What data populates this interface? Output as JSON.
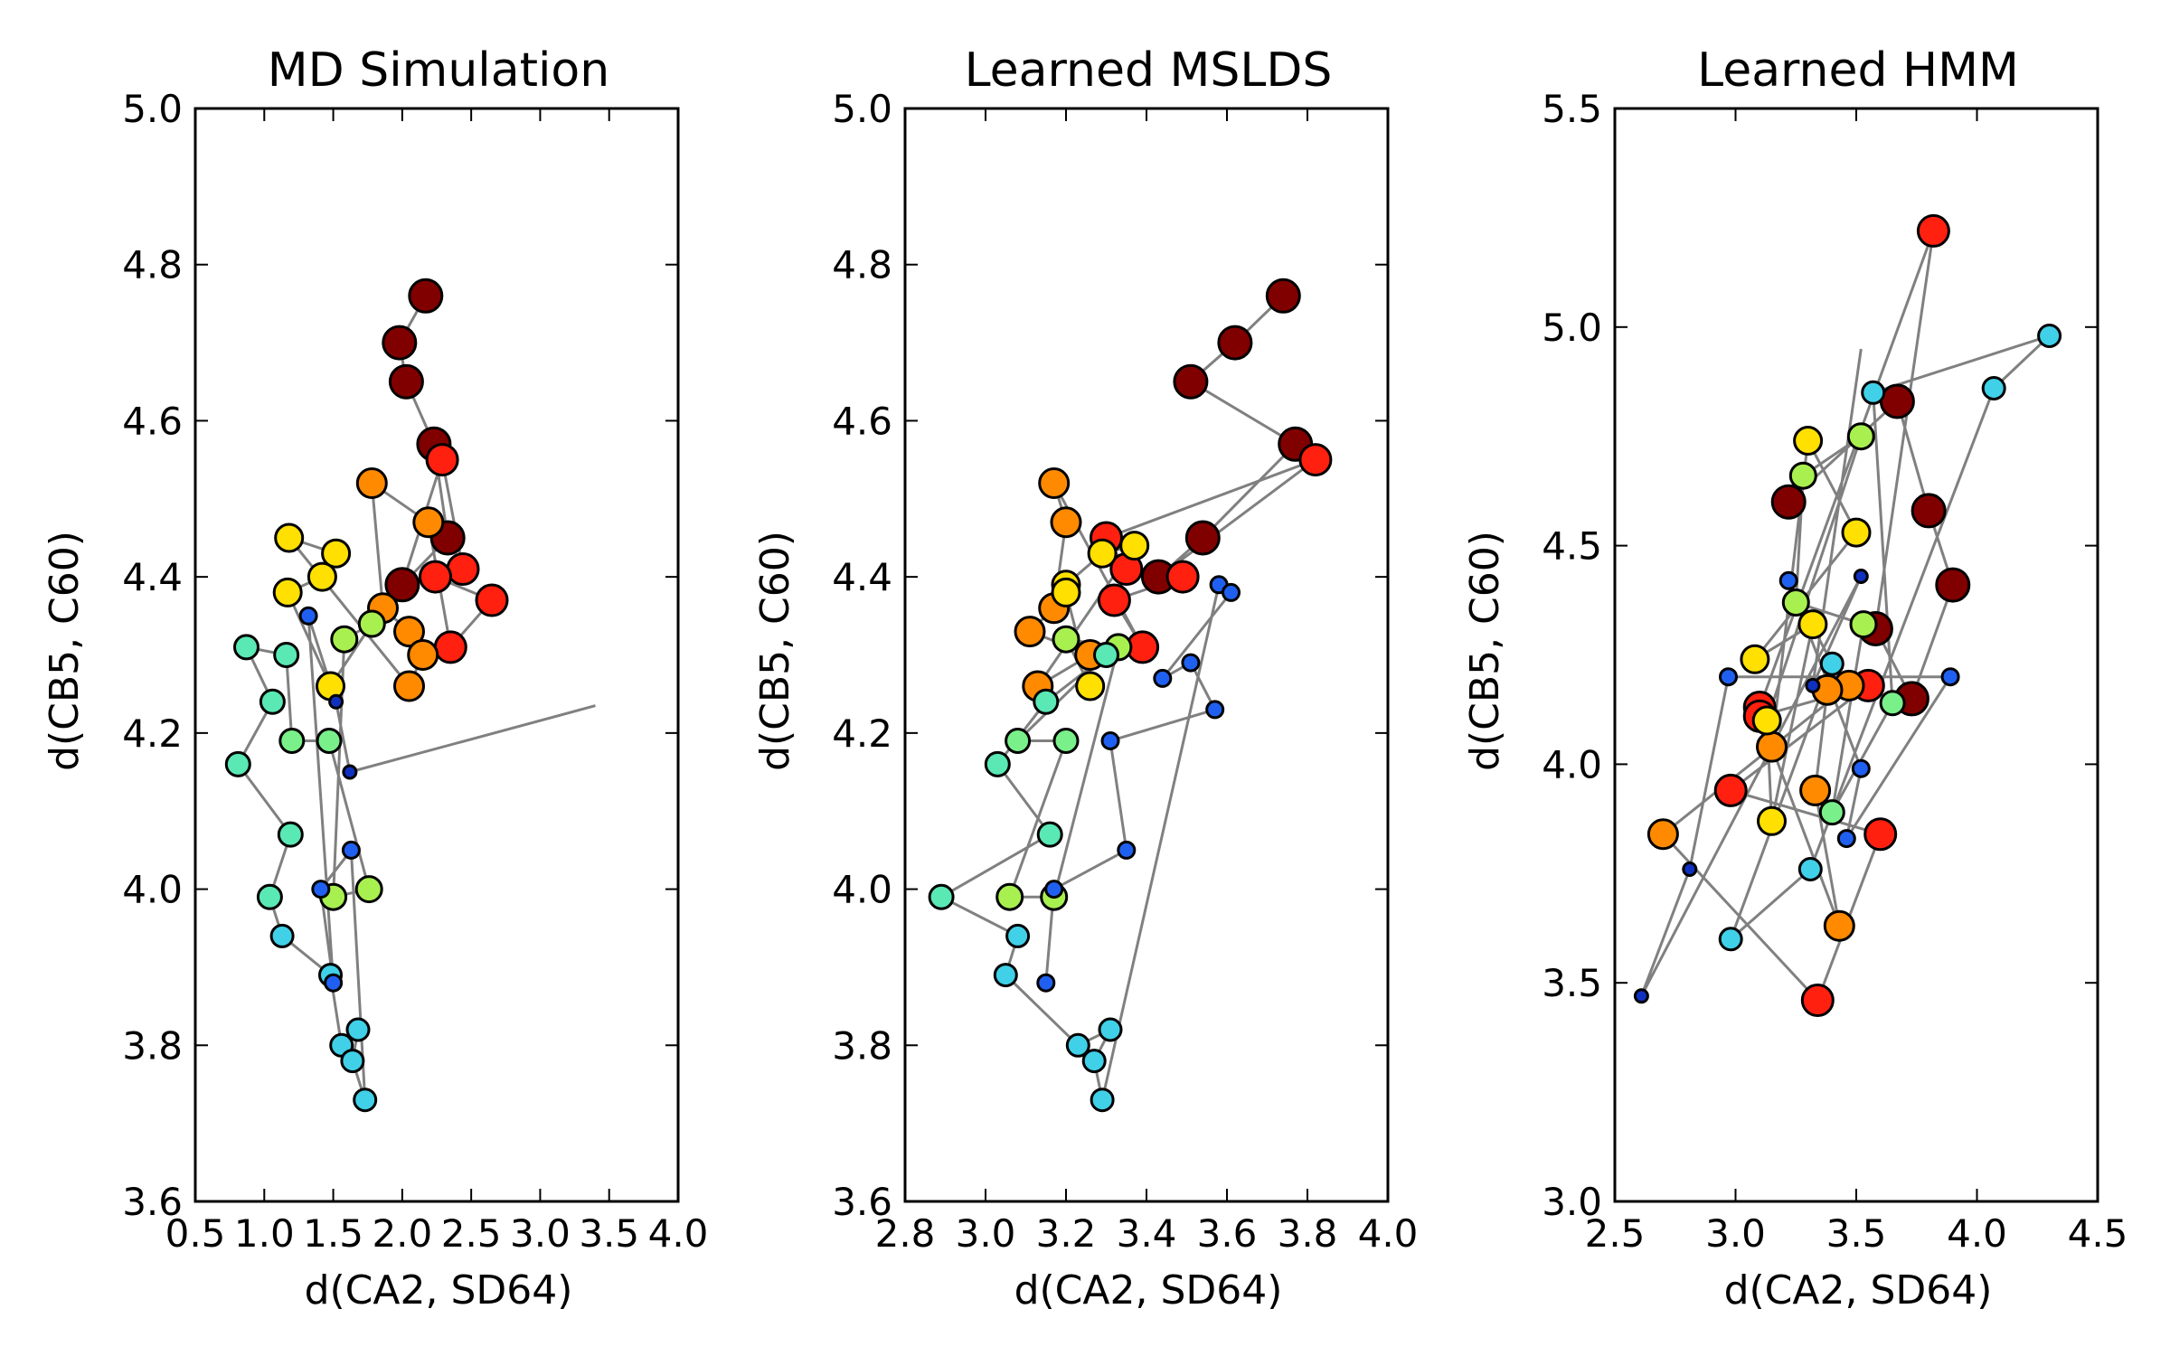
{
  "chart_data": [
    {
      "type": "scatter",
      "title": "MD Simulation",
      "xlabel": "d(CA2, SD64)",
      "ylabel": "d(CB5, C60)",
      "xlim": [
        0.5,
        4.0
      ],
      "ylim": [
        3.6,
        5.0
      ],
      "xticks": [
        "0.5",
        "1.0",
        "1.5",
        "2.0",
        "2.5",
        "3.0",
        "3.5",
        "4.0"
      ],
      "yticks": [
        "3.6",
        "3.8",
        "4.0",
        "4.2",
        "4.4",
        "4.6",
        "4.8",
        "5.0"
      ],
      "grid": false,
      "points": [
        {
          "x": 2.17,
          "y": 4.76,
          "c": "#800000"
        },
        {
          "x": 1.98,
          "y": 4.7,
          "c": "#800000"
        },
        {
          "x": 2.03,
          "y": 4.65,
          "c": "#800000"
        },
        {
          "x": 2.23,
          "y": 4.57,
          "c": "#800000"
        },
        {
          "x": 2.33,
          "y": 4.45,
          "c": "#800000"
        },
        {
          "x": 2.0,
          "y": 4.39,
          "c": "#800000"
        },
        {
          "x": 2.29,
          "y": 4.55,
          "c": "#ff2010"
        },
        {
          "x": 2.44,
          "y": 4.41,
          "c": "#ff2010"
        },
        {
          "x": 2.24,
          "y": 4.4,
          "c": "#ff2010"
        },
        {
          "x": 2.65,
          "y": 4.37,
          "c": "#ff2010"
        },
        {
          "x": 2.35,
          "y": 4.31,
          "c": "#ff2010"
        },
        {
          "x": 2.19,
          "y": 4.47,
          "c": "#ff8a00"
        },
        {
          "x": 1.78,
          "y": 4.52,
          "c": "#ff8a00"
        },
        {
          "x": 1.86,
          "y": 4.36,
          "c": "#ff8a00"
        },
        {
          "x": 2.05,
          "y": 4.33,
          "c": "#ff8a00"
        },
        {
          "x": 2.15,
          "y": 4.3,
          "c": "#ff8a00"
        },
        {
          "x": 2.05,
          "y": 4.26,
          "c": "#ff8a00"
        },
        {
          "x": 1.18,
          "y": 4.45,
          "c": "#ffe000"
        },
        {
          "x": 1.52,
          "y": 4.43,
          "c": "#ffe000"
        },
        {
          "x": 1.42,
          "y": 4.4,
          "c": "#ffe000"
        },
        {
          "x": 1.17,
          "y": 4.38,
          "c": "#ffe000"
        },
        {
          "x": 1.48,
          "y": 4.26,
          "c": "#ffe000"
        },
        {
          "x": 1.78,
          "y": 4.34,
          "c": "#a8f050"
        },
        {
          "x": 1.58,
          "y": 4.32,
          "c": "#a8f050"
        },
        {
          "x": 1.5,
          "y": 3.99,
          "c": "#a8f050"
        },
        {
          "x": 1.76,
          "y": 4.0,
          "c": "#a8f050"
        },
        {
          "x": 1.47,
          "y": 4.19,
          "c": "#7af08a"
        },
        {
          "x": 1.2,
          "y": 4.19,
          "c": "#7af08a"
        },
        {
          "x": 1.16,
          "y": 4.3,
          "c": "#5ae8b4"
        },
        {
          "x": 0.87,
          "y": 4.31,
          "c": "#5ae8b4"
        },
        {
          "x": 1.06,
          "y": 4.24,
          "c": "#5ae8b4"
        },
        {
          "x": 0.81,
          "y": 4.16,
          "c": "#5ae8b4"
        },
        {
          "x": 1.19,
          "y": 4.07,
          "c": "#5ae8b4"
        },
        {
          "x": 1.04,
          "y": 3.99,
          "c": "#5ae8b4"
        },
        {
          "x": 1.13,
          "y": 3.94,
          "c": "#40d0e8"
        },
        {
          "x": 1.48,
          "y": 3.89,
          "c": "#40d0e8"
        },
        {
          "x": 1.56,
          "y": 3.8,
          "c": "#40d0e8"
        },
        {
          "x": 1.68,
          "y": 3.82,
          "c": "#40d0e8"
        },
        {
          "x": 1.64,
          "y": 3.78,
          "c": "#40d0e8"
        },
        {
          "x": 1.73,
          "y": 3.73,
          "c": "#40d0e8"
        },
        {
          "x": 1.63,
          "y": 4.05,
          "c": "#2060f0"
        },
        {
          "x": 1.41,
          "y": 4.0,
          "c": "#2060f0"
        },
        {
          "x": 1.5,
          "y": 3.88,
          "c": "#2060f0"
        },
        {
          "x": 1.32,
          "y": 4.35,
          "c": "#2060f0"
        },
        {
          "x": 1.52,
          "y": 4.24,
          "c": "#1030c0"
        },
        {
          "x": 1.62,
          "y": 4.15,
          "c": "#1030c0"
        }
      ]
    },
    {
      "type": "scatter",
      "title": "Learned MSLDS",
      "xlabel": "d(CA2, SD64)",
      "ylabel": "d(CB5, C60)",
      "xlim": [
        2.8,
        4.0
      ],
      "ylim": [
        3.6,
        5.0
      ],
      "xticks": [
        "2.8",
        "3.0",
        "3.2",
        "3.4",
        "3.6",
        "3.8",
        "4.0"
      ],
      "yticks": [
        "3.6",
        "3.8",
        "4.0",
        "4.2",
        "4.4",
        "4.6",
        "4.8",
        "5.0"
      ],
      "grid": false,
      "points": [
        {
          "x": 3.74,
          "y": 4.76,
          "c": "#800000"
        },
        {
          "x": 3.62,
          "y": 4.7,
          "c": "#800000"
        },
        {
          "x": 3.51,
          "y": 4.65,
          "c": "#800000"
        },
        {
          "x": 3.77,
          "y": 4.57,
          "c": "#800000"
        },
        {
          "x": 3.54,
          "y": 4.45,
          "c": "#800000"
        },
        {
          "x": 3.43,
          "y": 4.4,
          "c": "#800000"
        },
        {
          "x": 3.82,
          "y": 4.55,
          "c": "#ff2010"
        },
        {
          "x": 3.3,
          "y": 4.45,
          "c": "#ff2010"
        },
        {
          "x": 3.35,
          "y": 4.41,
          "c": "#ff2010"
        },
        {
          "x": 3.49,
          "y": 4.4,
          "c": "#ff2010"
        },
        {
          "x": 3.32,
          "y": 4.37,
          "c": "#ff2010"
        },
        {
          "x": 3.39,
          "y": 4.31,
          "c": "#ff2010"
        },
        {
          "x": 3.17,
          "y": 4.52,
          "c": "#ff8a00"
        },
        {
          "x": 3.2,
          "y": 4.47,
          "c": "#ff8a00"
        },
        {
          "x": 3.17,
          "y": 4.36,
          "c": "#ff8a00"
        },
        {
          "x": 3.11,
          "y": 4.33,
          "c": "#ff8a00"
        },
        {
          "x": 3.26,
          "y": 4.3,
          "c": "#ff8a00"
        },
        {
          "x": 3.13,
          "y": 4.26,
          "c": "#ff8a00"
        },
        {
          "x": 3.37,
          "y": 4.44,
          "c": "#ffe000"
        },
        {
          "x": 3.29,
          "y": 4.43,
          "c": "#ffe000"
        },
        {
          "x": 3.2,
          "y": 4.39,
          "c": "#ffe000"
        },
        {
          "x": 3.2,
          "y": 4.38,
          "c": "#ffe000"
        },
        {
          "x": 3.26,
          "y": 4.26,
          "c": "#ffe000"
        },
        {
          "x": 3.2,
          "y": 4.32,
          "c": "#a8f050"
        },
        {
          "x": 3.33,
          "y": 4.31,
          "c": "#a8f050"
        },
        {
          "x": 3.17,
          "y": 3.99,
          "c": "#a8f050"
        },
        {
          "x": 3.06,
          "y": 3.99,
          "c": "#a8f050"
        },
        {
          "x": 3.2,
          "y": 4.19,
          "c": "#7af08a"
        },
        {
          "x": 3.08,
          "y": 4.19,
          "c": "#7af08a"
        },
        {
          "x": 3.3,
          "y": 4.3,
          "c": "#5ae8b4"
        },
        {
          "x": 3.15,
          "y": 4.24,
          "c": "#5ae8b4"
        },
        {
          "x": 3.03,
          "y": 4.16,
          "c": "#5ae8b4"
        },
        {
          "x": 3.16,
          "y": 4.07,
          "c": "#5ae8b4"
        },
        {
          "x": 2.89,
          "y": 3.99,
          "c": "#5ae8b4"
        },
        {
          "x": 3.08,
          "y": 3.94,
          "c": "#40d0e8"
        },
        {
          "x": 3.05,
          "y": 3.89,
          "c": "#40d0e8"
        },
        {
          "x": 3.23,
          "y": 3.8,
          "c": "#40d0e8"
        },
        {
          "x": 3.31,
          "y": 3.82,
          "c": "#40d0e8"
        },
        {
          "x": 3.27,
          "y": 3.78,
          "c": "#40d0e8"
        },
        {
          "x": 3.29,
          "y": 3.73,
          "c": "#40d0e8"
        },
        {
          "x": 3.58,
          "y": 4.39,
          "c": "#2060f0"
        },
        {
          "x": 3.61,
          "y": 4.38,
          "c": "#2060f0"
        },
        {
          "x": 3.44,
          "y": 4.27,
          "c": "#2060f0"
        },
        {
          "x": 3.51,
          "y": 4.29,
          "c": "#2060f0"
        },
        {
          "x": 3.57,
          "y": 4.23,
          "c": "#2060f0"
        },
        {
          "x": 3.31,
          "y": 4.19,
          "c": "#2060f0"
        },
        {
          "x": 3.35,
          "y": 4.05,
          "c": "#2060f0"
        },
        {
          "x": 3.17,
          "y": 4.0,
          "c": "#2060f0"
        },
        {
          "x": 3.15,
          "y": 3.88,
          "c": "#2060f0"
        }
      ]
    },
    {
      "type": "scatter",
      "title": "Learned HMM",
      "xlabel": "d(CA2, SD64)",
      "ylabel": "d(CB5, C60)",
      "xlim": [
        2.5,
        4.5
      ],
      "ylim": [
        3.0,
        5.5
      ],
      "xticks": [
        "2.5",
        "3.0",
        "3.5",
        "4.0",
        "4.5"
      ],
      "yticks": [
        "3.0",
        "3.5",
        "4.0",
        "4.5",
        "5.0",
        "5.5"
      ],
      "grid": false,
      "points": [
        {
          "x": 3.22,
          "y": 4.6,
          "c": "#800000"
        },
        {
          "x": 3.67,
          "y": 4.83,
          "c": "#800000"
        },
        {
          "x": 3.8,
          "y": 4.58,
          "c": "#800000"
        },
        {
          "x": 3.9,
          "y": 4.41,
          "c": "#800000"
        },
        {
          "x": 3.73,
          "y": 4.15,
          "c": "#800000"
        },
        {
          "x": 3.58,
          "y": 4.31,
          "c": "#800000"
        },
        {
          "x": 3.82,
          "y": 5.22,
          "c": "#ff2010"
        },
        {
          "x": 3.1,
          "y": 4.13,
          "c": "#ff2010"
        },
        {
          "x": 3.1,
          "y": 4.11,
          "c": "#ff2010"
        },
        {
          "x": 3.55,
          "y": 4.18,
          "c": "#ff2010"
        },
        {
          "x": 2.98,
          "y": 3.94,
          "c": "#ff2010"
        },
        {
          "x": 3.6,
          "y": 3.84,
          "c": "#ff2010"
        },
        {
          "x": 3.34,
          "y": 3.46,
          "c": "#ff2010"
        },
        {
          "x": 2.7,
          "y": 3.84,
          "c": "#ff8a00"
        },
        {
          "x": 3.47,
          "y": 4.18,
          "c": "#ff8a00"
        },
        {
          "x": 3.38,
          "y": 4.17,
          "c": "#ff8a00"
        },
        {
          "x": 3.33,
          "y": 3.94,
          "c": "#ff8a00"
        },
        {
          "x": 3.43,
          "y": 3.63,
          "c": "#ff8a00"
        },
        {
          "x": 3.15,
          "y": 4.04,
          "c": "#ff8a00"
        },
        {
          "x": 3.3,
          "y": 4.74,
          "c": "#ffe000"
        },
        {
          "x": 3.5,
          "y": 4.53,
          "c": "#ffe000"
        },
        {
          "x": 3.08,
          "y": 4.24,
          "c": "#ffe000"
        },
        {
          "x": 3.32,
          "y": 4.32,
          "c": "#ffe000"
        },
        {
          "x": 3.15,
          "y": 3.87,
          "c": "#ffe000"
        },
        {
          "x": 3.13,
          "y": 4.1,
          "c": "#ffe000"
        },
        {
          "x": 3.52,
          "y": 4.75,
          "c": "#a8f050"
        },
        {
          "x": 3.28,
          "y": 4.66,
          "c": "#a8f050"
        },
        {
          "x": 3.25,
          "y": 4.37,
          "c": "#a8f050"
        },
        {
          "x": 3.53,
          "y": 4.32,
          "c": "#a8f050"
        },
        {
          "x": 3.4,
          "y": 3.89,
          "c": "#7af08a"
        },
        {
          "x": 3.65,
          "y": 4.14,
          "c": "#7af08a"
        },
        {
          "x": 3.57,
          "y": 4.85,
          "c": "#40d0e8"
        },
        {
          "x": 4.3,
          "y": 4.98,
          "c": "#40d0e8"
        },
        {
          "x": 4.07,
          "y": 4.86,
          "c": "#40d0e8"
        },
        {
          "x": 3.31,
          "y": 3.76,
          "c": "#40d0e8"
        },
        {
          "x": 2.98,
          "y": 3.6,
          "c": "#40d0e8"
        },
        {
          "x": 3.4,
          "y": 4.23,
          "c": "#40d0e8"
        },
        {
          "x": 3.22,
          "y": 4.42,
          "c": "#2060f0"
        },
        {
          "x": 3.52,
          "y": 3.99,
          "c": "#2060f0"
        },
        {
          "x": 3.46,
          "y": 3.83,
          "c": "#2060f0"
        },
        {
          "x": 3.89,
          "y": 4.2,
          "c": "#2060f0"
        },
        {
          "x": 2.97,
          "y": 4.2,
          "c": "#2060f0"
        },
        {
          "x": 2.81,
          "y": 3.76,
          "c": "#1030c0"
        },
        {
          "x": 2.61,
          "y": 3.47,
          "c": "#1030c0"
        },
        {
          "x": 3.52,
          "y": 4.43,
          "c": "#1030c0"
        },
        {
          "x": 3.32,
          "y": 4.18,
          "c": "#1030c0"
        }
      ]
    }
  ],
  "colors": {
    "line": "#808080",
    "marker_edge": "#000000",
    "axes": "#000000"
  }
}
